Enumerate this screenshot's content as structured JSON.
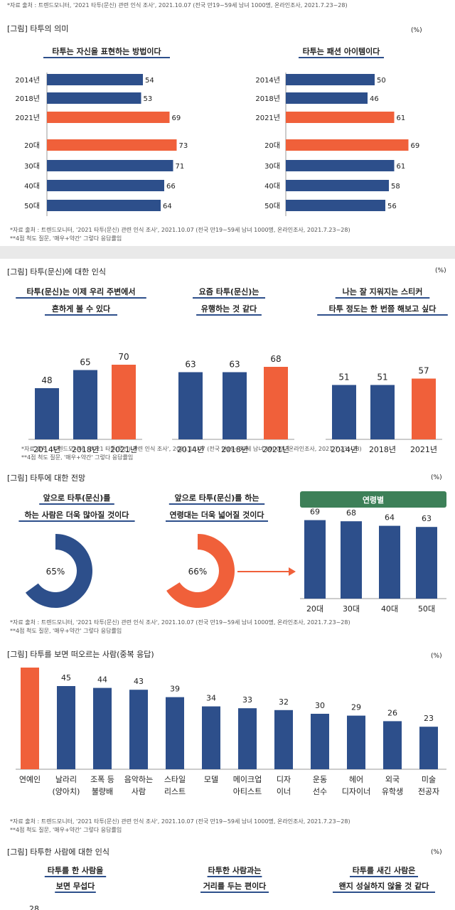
{
  "colors": {
    "blue": "#2d4f8b",
    "orange": "#f0603a",
    "green": "#3d8058"
  },
  "top_source": "*자료 출처 : 트렌드모니터, '2021 타투(문신) 관련 인식 조사', 2021.10.07 (전국 만19~59세 남녀 1000명, 온라인조사, 2021.7.23~28)",
  "source_line": "*자료 출처 : 트렌드모니터, '2021 타투(문신) 관련 인식 조사', 2021.10.07 (전국 만19~59세 남녀 1000명, 온라인조사, 2021.7.23~28)",
  "scale_note": "**4점 척도 질문, '매우+약간' 그렇다 응답률임",
  "unit": "(%)",
  "chart_data": [
    {
      "id": "meaning",
      "type": "bar",
      "orientation": "horizontal",
      "title": "[그림] 타투의 의미",
      "categories": [
        "2014년",
        "2018년",
        "2021년",
        "20대",
        "30대",
        "40대",
        "50대"
      ],
      "highlight": [
        2,
        3
      ],
      "series": [
        {
          "name": "타투는 자신을 표현하는 방법이다",
          "values": [
            54,
            53,
            69,
            73,
            71,
            66,
            64
          ]
        },
        {
          "name": "타투는 패션 아이템이다",
          "values": [
            50,
            46,
            61,
            69,
            61,
            58,
            56
          ]
        }
      ],
      "xlim": [
        0,
        100
      ]
    },
    {
      "id": "perception",
      "type": "bar",
      "title": "[그림] 타투(문신)에 대한 인식",
      "categories": [
        "2014년",
        "2018년",
        "2021년"
      ],
      "series": [
        {
          "name_lines": [
            "타투(문신)는 이제 우리 주변에서",
            "흔하게 볼 수 있다"
          ],
          "values": [
            48,
            65,
            70
          ]
        },
        {
          "name_lines": [
            "요즘 타투(문신)는",
            "유행하는 것 같다"
          ],
          "values": [
            63,
            63,
            68
          ]
        },
        {
          "name_lines": [
            "나는 잘 지워지는 스티커",
            "타투 정도는 한 번쯤 해보고 싶다"
          ],
          "values": [
            51,
            51,
            57
          ]
        }
      ],
      "ylim": [
        0,
        90
      ]
    },
    {
      "id": "outlook",
      "type": "pie",
      "title": "[그림] 타투에 대한 전망",
      "donuts": [
        {
          "name_lines": [
            "앞으로 타투(문신)를",
            "하는 사람은 더욱 많아질 것이다"
          ],
          "value": 65,
          "label": "65%"
        },
        {
          "name_lines": [
            "앞으로 타투(문신)를 하는",
            "연령대는 더욱 넓어질 것이다"
          ],
          "value": 66,
          "label": "66%"
        }
      ],
      "age_title": "연령별",
      "categories": [
        "20대",
        "30대",
        "40대",
        "50대"
      ],
      "values": [
        69,
        68,
        64,
        63
      ],
      "ylim": [
        0,
        90
      ]
    },
    {
      "id": "people",
      "type": "bar",
      "title": "[그림] 타투를 보면 떠오르는 사람(중복 응답)",
      "categories": [
        [
          "연예인"
        ],
        [
          "날라리",
          "(양아치)"
        ],
        [
          "조폭 등",
          "불량배"
        ],
        [
          "음악하는",
          "사람"
        ],
        [
          "스타일",
          "리스트"
        ],
        [
          "모델"
        ],
        [
          "메이크업",
          "아티스트"
        ],
        [
          "디자",
          "이너"
        ],
        [
          "운동",
          "선수"
        ],
        [
          "헤어",
          "디자이너"
        ],
        [
          "외국",
          "유학생"
        ],
        [
          "미술",
          "전공자"
        ]
      ],
      "values": [
        55,
        45,
        44,
        43,
        39,
        34,
        33,
        32,
        30,
        29,
        26,
        23
      ],
      "ylim": [
        0,
        60
      ]
    },
    {
      "id": "people_perception",
      "type": "bar",
      "title": "[그림] 타투한 사람에 대한 인식",
      "series": [
        {
          "name_lines": [
            "타투를 한 사람을",
            "보면 무섭다"
          ]
        },
        {
          "name_lines": [
            "타투한 사람과는",
            "거리를 두는 편이다"
          ]
        },
        {
          "name_lines": [
            "타투를 새긴 사람은",
            "왠지 성실하지 않을 것 같다"
          ]
        }
      ],
      "partial_value": "28"
    }
  ]
}
